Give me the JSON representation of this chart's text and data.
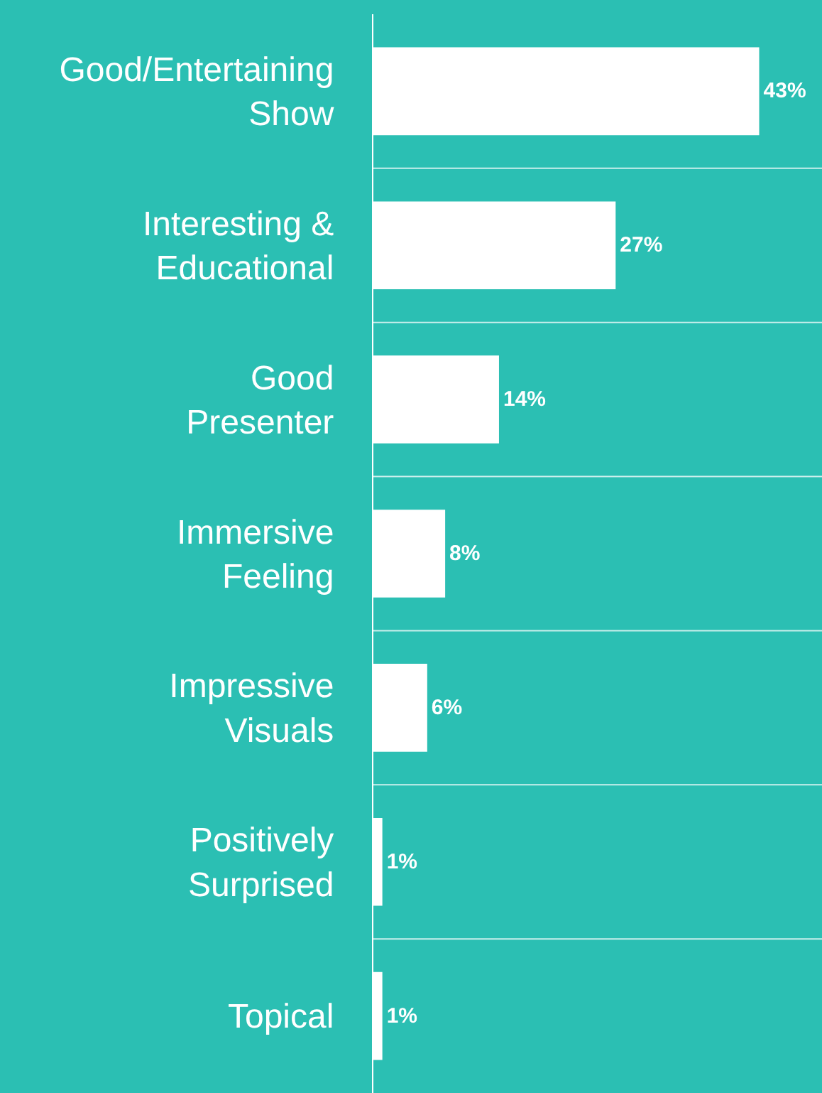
{
  "chart_data": {
    "type": "bar",
    "orientation": "horizontal",
    "categories": [
      "Good/Entertaining Show",
      "Interesting & Educational",
      "Good Presenter",
      "Immersive Feeling",
      "Impressive Visuals",
      "Positively Surprised",
      "Topical"
    ],
    "values": [
      43,
      27,
      14,
      8,
      6,
      1,
      1
    ],
    "value_labels": [
      "43%",
      "27%",
      "14%",
      "8%",
      "6%",
      "1%",
      "1%"
    ],
    "color": "#ffffff",
    "xlim": [
      0,
      50
    ],
    "tick_labels": "y",
    "grid": "y"
  }
}
